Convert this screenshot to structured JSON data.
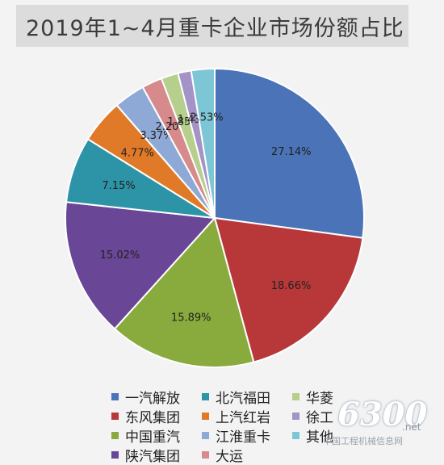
{
  "chart_data": {
    "type": "pie",
    "title": "2019年1~4月重卡企业市场份额占比",
    "slices": [
      {
        "name": "一汽解放",
        "value": 27.14,
        "label": "27.14%",
        "color": "#4a73b8"
      },
      {
        "name": "东风集团",
        "value": 18.66,
        "label": "18.66%",
        "color": "#b8383a"
      },
      {
        "name": "中国重汽",
        "value": 15.89,
        "label": "15.89%",
        "color": "#89aa3c"
      },
      {
        "name": "陕汽集团",
        "value": 15.02,
        "label": "15.02%",
        "color": "#6a4796"
      },
      {
        "name": "北汽福田",
        "value": 7.15,
        "label": "7.15%",
        "color": "#2d93a6"
      },
      {
        "name": "上汽红岩",
        "value": 4.77,
        "label": "4.77%",
        "color": "#e07a28"
      },
      {
        "name": "江淮重卡",
        "value": 3.37,
        "label": "3.37%",
        "color": "#8fa9d6"
      },
      {
        "name": "大运",
        "value": 2.2,
        "label": "2.20%",
        "color": "#d68a8c"
      },
      {
        "name": "华菱",
        "value": 1.85,
        "label": "1.85%",
        "color": "#b6cf8c"
      },
      {
        "name": "徐工",
        "value": 1.43,
        "label": "1.43%",
        "color": "#a493c6"
      },
      {
        "name": "其他",
        "value": 2.53,
        "label": "2.53%",
        "color": "#7cc6d6"
      }
    ],
    "legend": [
      [
        "一汽解放",
        "北汽福田",
        "华菱"
      ],
      [
        "东风集团",
        "上汽红岩",
        "徐工"
      ],
      [
        "中国重汽",
        "江淮重卡",
        "其他"
      ],
      [
        "陕汽集团",
        "大运",
        ""
      ]
    ],
    "legend_placement": "bottom"
  },
  "watermark": {
    "number": "6300",
    "suffix": ".net",
    "subtitle": "中国工程机械信息网"
  }
}
